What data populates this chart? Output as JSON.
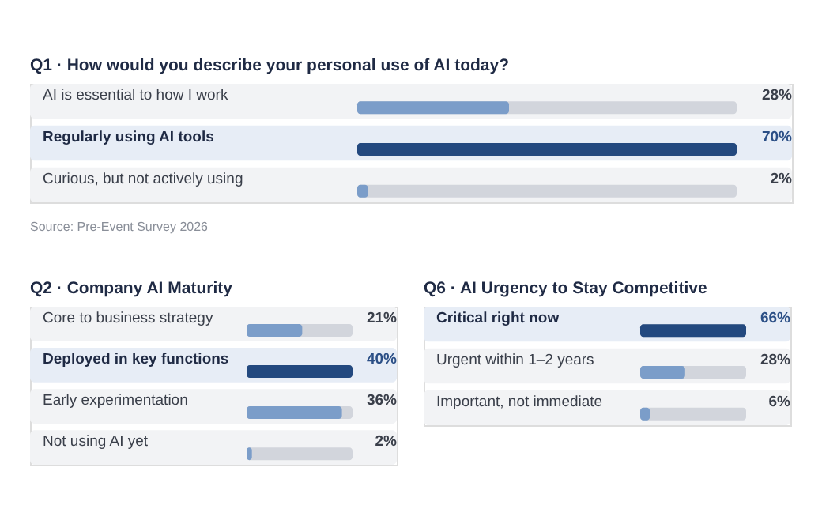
{
  "chart_data": [
    {
      "type": "bar",
      "orientation": "horizontal",
      "title": "Q1 · How would you describe your personal use of AI today?",
      "categories": [
        "AI is essential to how I work",
        "Regularly using AI tools",
        "Curious, but not actively using"
      ],
      "values": [
        28,
        70,
        2
      ],
      "value_labels": [
        "28%",
        "70%",
        "2%"
      ],
      "colors": [
        "#7b9dc9",
        "#23497f",
        "#7b9dc9"
      ],
      "xlim": [
        0,
        70
      ],
      "annotations": [
        "Source: Pre-Event Survey 2026"
      ]
    },
    {
      "type": "bar",
      "orientation": "horizontal",
      "title": "Q2 · Company AI Maturity",
      "categories": [
        "Core to business strategy",
        "Deployed in key functions",
        "Early experimentation",
        "Not using AI yet"
      ],
      "values": [
        21,
        40,
        36,
        2
      ],
      "value_labels": [
        "21%",
        "40%",
        "36%",
        "2%"
      ],
      "colors": [
        "#7b9dc9",
        "#23497f",
        "#7b9dc9",
        "#7b9dc9"
      ],
      "xlim": [
        0,
        40
      ]
    },
    {
      "type": "bar",
      "orientation": "horizontal",
      "title": "Q6 · AI Urgency to Stay Competitive",
      "categories": [
        "Critical right now",
        "Urgent within 1–2 years",
        "Important, not immediate"
      ],
      "values": [
        66,
        28,
        6
      ],
      "value_labels": [
        "66%",
        "28%",
        "6%"
      ],
      "colors": [
        "#23497f",
        "#7b9dc9",
        "#7b9dc9"
      ],
      "xlim": [
        0,
        66
      ]
    }
  ]
}
